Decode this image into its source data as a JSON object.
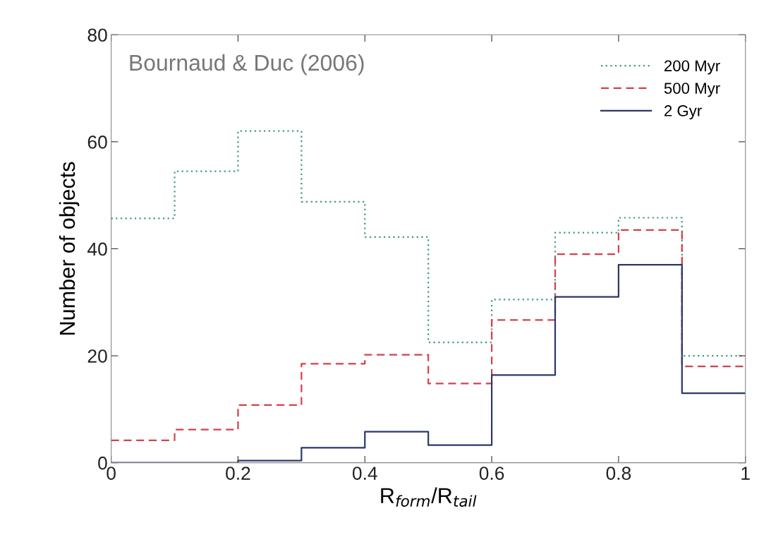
{
  "chart_data": {
    "type": "histogram",
    "xlabel": "R$_{form}$/R$_{tail}$",
    "ylabel": "Number of objects",
    "annotations": [
      "Bournaud & Duc (2006)"
    ],
    "bins": [
      0,
      0.1,
      0.2,
      0.3,
      0.4,
      0.5,
      0.6,
      0.7,
      0.8,
      0.9,
      1.0
    ],
    "series": [
      {
        "name": "200 Myr",
        "color": "#3f9c80",
        "line_style": "dotted",
        "values": [
          45.7,
          54.5,
          62,
          48.8,
          42.2,
          22.5,
          30.5,
          43,
          45.8,
          20
        ]
      },
      {
        "name": "500 Myr",
        "color": "#d2424c",
        "line_style": "dashed",
        "values": [
          4.2,
          6.2,
          10.8,
          18.5,
          20.2,
          14.8,
          26.7,
          39,
          43.5,
          18
        ]
      },
      {
        "name": "2 Gyr",
        "color": "#2c3868",
        "line_style": "solid",
        "values": [
          0,
          0,
          0.4,
          2.8,
          5.8,
          3.3,
          16.4,
          31,
          37,
          13
        ]
      }
    ],
    "xlim": [
      0,
      1
    ],
    "ylim": [
      0,
      80
    ],
    "xticks": [
      0,
      0.2,
      0.4,
      0.6,
      0.8,
      1
    ],
    "yticks": [
      0,
      20,
      40,
      60,
      80
    ],
    "grid": false,
    "legend": "top right"
  }
}
